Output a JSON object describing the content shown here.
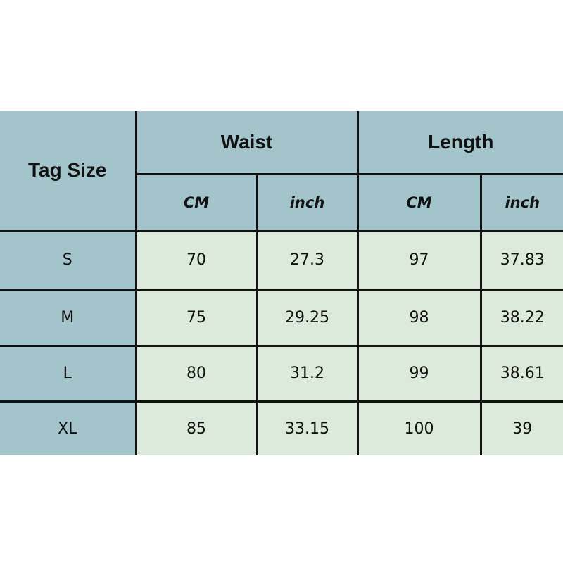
{
  "header": {
    "tag_size": "Tag Size",
    "waist": "Waist",
    "length": "Length",
    "cm": "CM",
    "inch": "inch"
  },
  "colors": {
    "header_bg": "#a3c4cb",
    "data_bg": "#dbeada",
    "border": "#111111"
  },
  "rows": [
    {
      "size": "S",
      "waist_cm": "70",
      "waist_inch": "27.3",
      "length_cm": "97",
      "length_inch": "37.83"
    },
    {
      "size": "M",
      "waist_cm": "75",
      "waist_inch": "29.25",
      "length_cm": "98",
      "length_inch": "38.22"
    },
    {
      "size": "L",
      "waist_cm": "80",
      "waist_inch": "31.2",
      "length_cm": "99",
      "length_inch": "38.61"
    },
    {
      "size": "XL",
      "waist_cm": "85",
      "waist_inch": "33.15",
      "length_cm": "100",
      "length_inch": "39"
    }
  ]
}
